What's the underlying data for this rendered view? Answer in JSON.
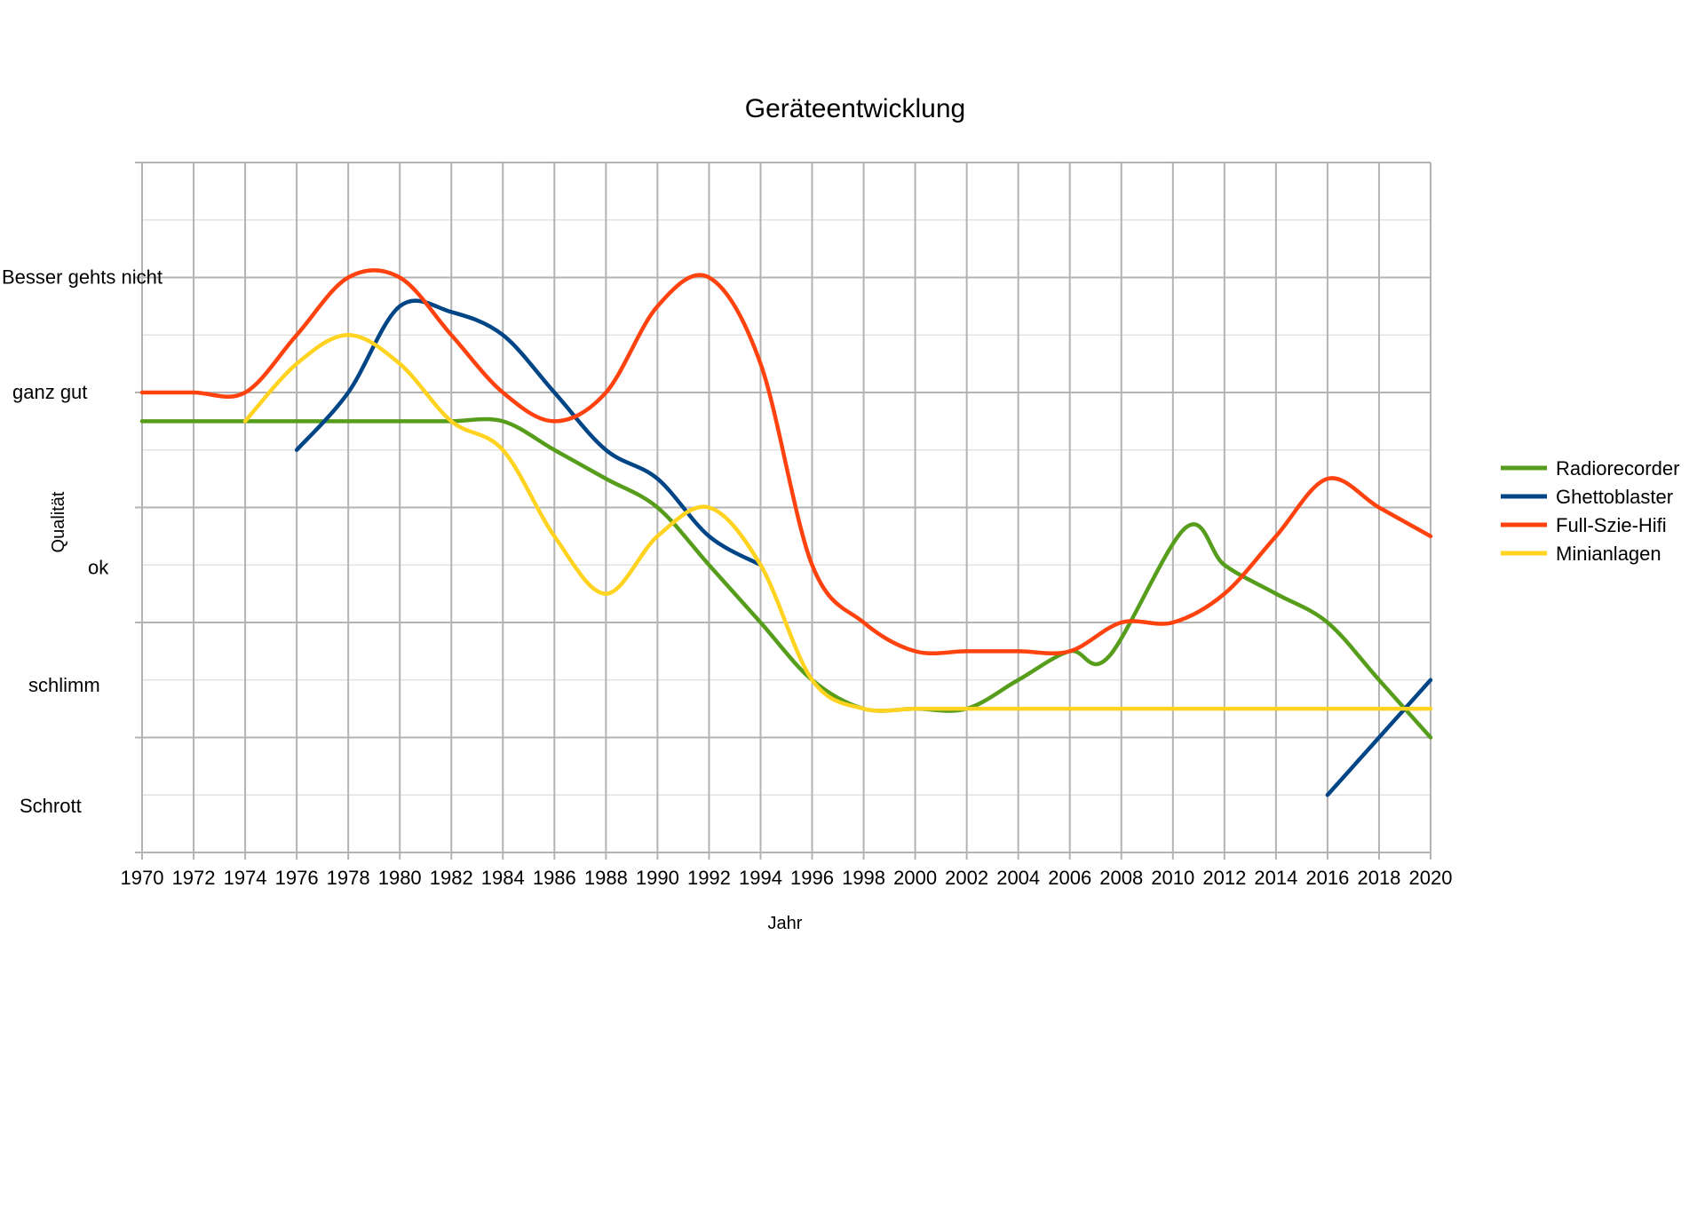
{
  "chart_data": {
    "type": "line",
    "title": "Geräteentwicklung",
    "xlabel": "Jahr",
    "ylabel": "Qualität",
    "x_ticks": [
      "1970",
      "1972",
      "1974",
      "1976",
      "1978",
      "1980",
      "1982",
      "1984",
      "1986",
      "1988",
      "1990",
      "1992",
      "1994",
      "1996",
      "1998",
      "2000",
      "2002",
      "2004",
      "2006",
      "2008",
      "2010",
      "2012",
      "2014",
      "2016",
      "2018",
      "2020"
    ],
    "xlim": [
      1970,
      2020
    ],
    "ylim": [
      0,
      12
    ],
    "y_category_labels": [
      {
        "text": "Besser gehts nicht",
        "value": 10
      },
      {
        "text": "ganz gut",
        "value": 8
      },
      {
        "text": "ok",
        "value": 4.95
      },
      {
        "text": "schlimm",
        "value": 2.9
      },
      {
        "text": "Schrott",
        "value": 0.8
      }
    ],
    "grid": true,
    "legend_position": "right",
    "series": [
      {
        "name": "Radiorecorder",
        "color": "#579d1c",
        "points": [
          [
            1970,
            7.5
          ],
          [
            1972,
            7.5
          ],
          [
            1974,
            7.5
          ],
          [
            1976,
            7.5
          ],
          [
            1978,
            7.5
          ],
          [
            1980,
            7.5
          ],
          [
            1982,
            7.5
          ],
          [
            1984,
            7.5
          ],
          [
            1986,
            7
          ],
          [
            1988,
            6.5
          ],
          [
            1990,
            6
          ],
          [
            1992,
            5
          ],
          [
            1994,
            4
          ],
          [
            1996,
            3
          ],
          [
            1998,
            2.5
          ],
          [
            2000,
            2.5
          ],
          [
            2002,
            2.5
          ],
          [
            2004,
            3
          ],
          [
            2006,
            3.5
          ],
          [
            2007.5,
            3.4
          ],
          [
            2010.5,
            5.65
          ],
          [
            2012,
            5
          ],
          [
            2014,
            4.5
          ],
          [
            2016,
            4
          ],
          [
            2018,
            3
          ],
          [
            2020,
            2
          ]
        ]
      },
      {
        "name": "Ghettoblaster",
        "color": "#004586",
        "segments": [
          [
            [
              1976,
              7
            ],
            [
              1978,
              8
            ],
            [
              1980,
              9.5
            ],
            [
              1982,
              9.4
            ],
            [
              1984,
              9
            ],
            [
              1986,
              8
            ],
            [
              1988,
              7
            ],
            [
              1990,
              6.5
            ],
            [
              1992,
              5.5
            ],
            [
              1994,
              5
            ]
          ],
          [
            [
              2016,
              1
            ],
            [
              2018,
              2
            ],
            [
              2020,
              3
            ]
          ]
        ]
      },
      {
        "name": "Full-Szie-Hifi",
        "color": "#ff420e",
        "points": [
          [
            1970,
            8
          ],
          [
            1972,
            8
          ],
          [
            1974,
            8
          ],
          [
            1976,
            9
          ],
          [
            1978,
            10
          ],
          [
            1980,
            10
          ],
          [
            1982,
            9
          ],
          [
            1984,
            8
          ],
          [
            1986,
            7.5
          ],
          [
            1988,
            8
          ],
          [
            1990,
            9.5
          ],
          [
            1992,
            10
          ],
          [
            1994,
            8.5
          ],
          [
            1996,
            5
          ],
          [
            1998,
            4
          ],
          [
            2000,
            3.5
          ],
          [
            2002,
            3.5
          ],
          [
            2004,
            3.5
          ],
          [
            2006,
            3.5
          ],
          [
            2008,
            4
          ],
          [
            2010,
            4
          ],
          [
            2012,
            4.5
          ],
          [
            2014,
            5.5
          ],
          [
            2016,
            6.5
          ],
          [
            2018,
            6
          ],
          [
            2020,
            5.5
          ]
        ]
      },
      {
        "name": "Minianlagen",
        "color": "#ffd320",
        "points": [
          [
            1974,
            7.5
          ],
          [
            1976,
            8.5
          ],
          [
            1978,
            9
          ],
          [
            1980,
            8.5
          ],
          [
            1982,
            7.5
          ],
          [
            1984,
            7
          ],
          [
            1986,
            5.5
          ],
          [
            1988,
            4.5
          ],
          [
            1990,
            5.5
          ],
          [
            1992,
            6
          ],
          [
            1994,
            5
          ],
          [
            1996,
            3
          ],
          [
            1998,
            2.5
          ],
          [
            2000,
            2.5
          ],
          [
            2002,
            2.5
          ],
          [
            2004,
            2.5
          ],
          [
            2006,
            2.5
          ],
          [
            2008,
            2.5
          ],
          [
            2010,
            2.5
          ],
          [
            2012,
            2.5
          ],
          [
            2014,
            2.5
          ],
          [
            2016,
            2.5
          ],
          [
            2018,
            2.5
          ],
          [
            2020,
            2.5
          ]
        ]
      }
    ]
  }
}
